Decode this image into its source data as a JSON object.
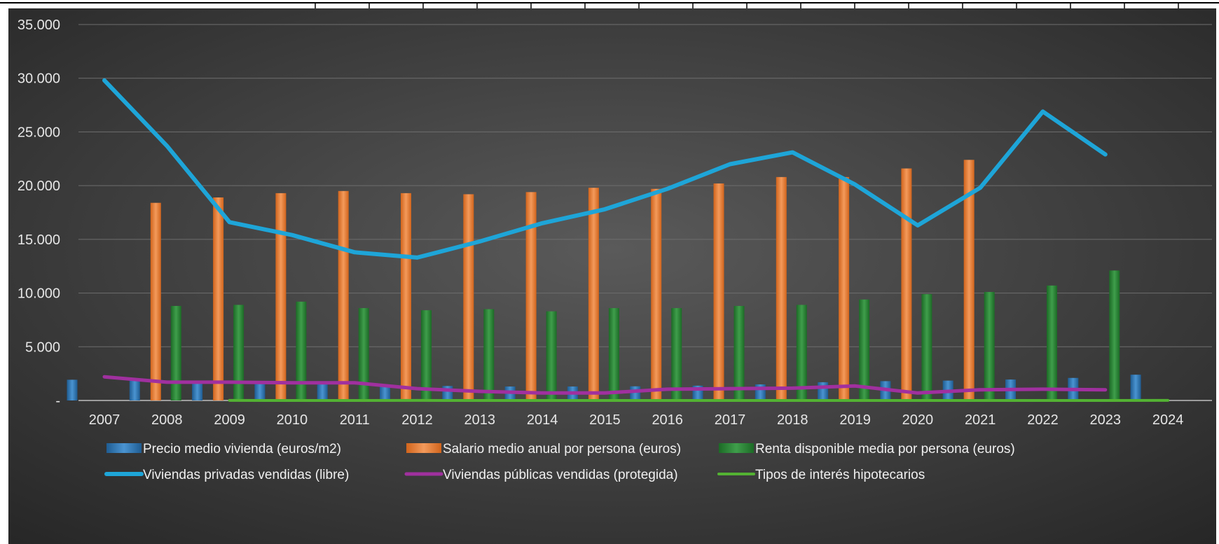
{
  "chart_data": {
    "type": "bar",
    "title": "",
    "xlabel": "",
    "ylabel": "",
    "ylim": [
      0,
      35000
    ],
    "y_ticks": [
      0,
      5000,
      10000,
      15000,
      20000,
      25000,
      30000,
      35000
    ],
    "y_tick_labels": [
      "-",
      "5.000",
      "10.000",
      "15.000",
      "20.000",
      "25.000",
      "30.000",
      "35.000"
    ],
    "grid": "horizontal",
    "legend_position": "bottom",
    "categories": [
      "2007",
      "2008",
      "2009",
      "2010",
      "2011",
      "2012",
      "2013",
      "2014",
      "2015",
      "2016",
      "2017",
      "2018",
      "2019",
      "2020",
      "2021",
      "2022",
      "2023",
      "2024"
    ],
    "series": [
      {
        "name": "Precio medio vivienda (euros/m2)",
        "type": "bar",
        "color": "#2e75b6",
        "values": [
          1930,
          1850,
          1750,
          1650,
          1550,
          1450,
          1350,
          1300,
          1300,
          1320,
          1380,
          1500,
          1700,
          1800,
          1850,
          1950,
          2100,
          2400
        ]
      },
      {
        "name": "Salario medio anual por persona (euros)",
        "type": "bar",
        "color": "#ed7d31",
        "values": [
          null,
          18400,
          18900,
          19300,
          19500,
          19300,
          19200,
          19400,
          19800,
          19700,
          20200,
          20800,
          20800,
          21600,
          22400,
          null,
          null,
          null
        ]
      },
      {
        "name": "Renta disponible media por persona (euros)",
        "type": "bar",
        "color": "#2e8b3a",
        "values": [
          null,
          8800,
          8900,
          9200,
          8600,
          8400,
          8500,
          8300,
          8600,
          8600,
          8800,
          8900,
          9400,
          9900,
          10100,
          10700,
          12100,
          null
        ]
      },
      {
        "name": "Viviendas privadas vendidas (libre)",
        "type": "line",
        "color": "#1ea5d8",
        "values": [
          29800,
          23700,
          16600,
          15400,
          13800,
          13300,
          14800,
          16500,
          17800,
          19700,
          22000,
          23100,
          20100,
          16300,
          19800,
          26900,
          22900,
          null
        ]
      },
      {
        "name": "Viviendas públicas vendidas (protegida)",
        "type": "line",
        "color": "#a0309f",
        "values": [
          2200,
          1700,
          1700,
          1650,
          1650,
          1100,
          850,
          700,
          700,
          1050,
          1100,
          1150,
          1350,
          700,
          1000,
          1050,
          1000,
          null
        ]
      },
      {
        "name": "Tipos de interés hipotecarios",
        "type": "line",
        "color": "#53b233",
        "values": [
          null,
          null,
          4,
          3,
          3,
          4,
          3,
          3,
          2,
          2,
          2,
          2,
          2,
          2,
          2,
          2,
          3,
          4
        ]
      }
    ]
  }
}
